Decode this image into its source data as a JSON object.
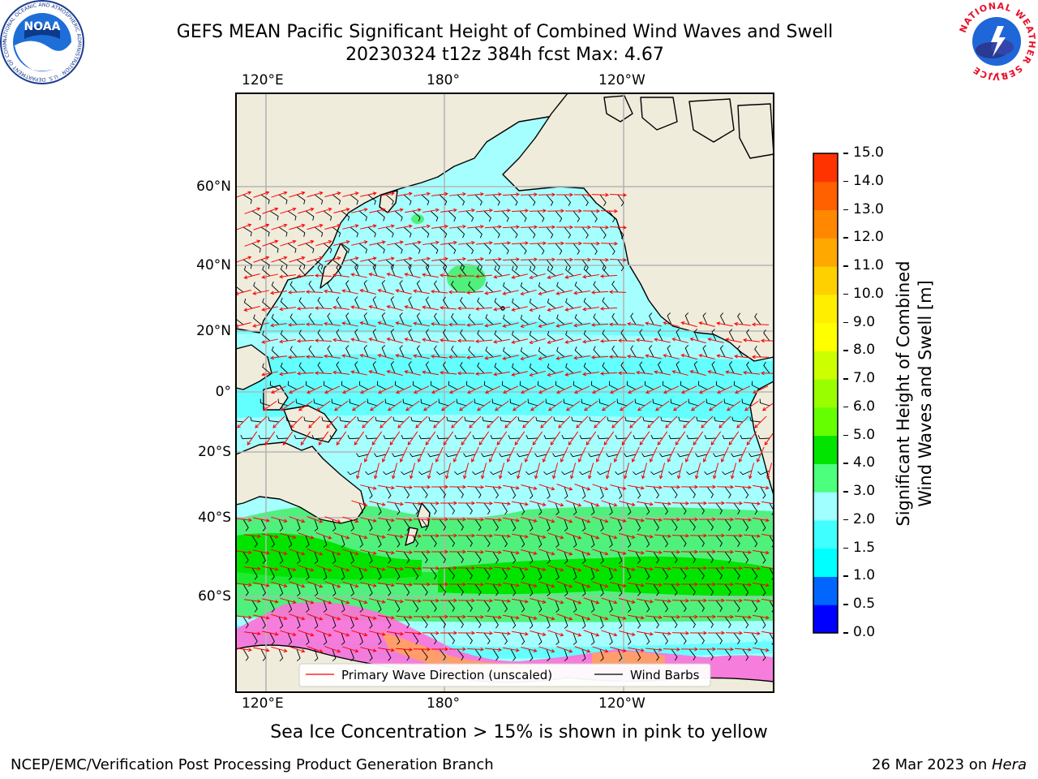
{
  "header": {
    "title_line1": "GEFS MEAN Pacific Significant Height of Combined Wind Waves and Swell",
    "title_line2": "20230324 t12z 384h fcst   Max: 4.67"
  },
  "logos": {
    "noaa_text": "NOAA",
    "noaa_ring_text": "NATIONAL OCEANIC AND ATMOSPHERIC ADMINISTRATION · U.S. DEPARTMENT OF COMMERCE",
    "nws_ring_text": "NATIONAL WEATHER SERVICE"
  },
  "map": {
    "lon_labels": [
      "120°E",
      "180°",
      "120°W"
    ],
    "lat_labels": [
      "60°N",
      "40°N",
      "20°N",
      "0°",
      "20°S",
      "40°S",
      "60°S"
    ],
    "legend": {
      "wave_dir": "Primary Wave Direction (unscaled)",
      "wind_barbs": "Wind Barbs"
    }
  },
  "colorbar": {
    "label_line1": "Significant Height of Combined",
    "label_line2": "Wind Waves and Swell [m]",
    "ticks": [
      "15.0",
      "14.0",
      "13.0",
      "12.0",
      "11.0",
      "10.0",
      "9.0",
      "8.0",
      "7.0",
      "6.0",
      "5.0",
      "4.0",
      "3.0",
      "2.0",
      "1.5",
      "1.0",
      "0.5",
      "0.0"
    ],
    "colors": [
      "#0000ff",
      "#0066ff",
      "#00ffff",
      "#40ffff",
      "#a0ffff",
      "#4cff7c",
      "#00e400",
      "#66ff00",
      "#99ff00",
      "#ccff00",
      "#ffff00",
      "#ffee00",
      "#ffd000",
      "#ffa800",
      "#ff8800",
      "#ff6000",
      "#ff3300",
      "#ff0000"
    ]
  },
  "note": "Sea Ice Concentration > 15% is shown in pink to yellow",
  "footer": {
    "left": "NCEP/EMC/Verification Post Processing Product Generation Branch",
    "right_date": "26 Mar 2023 on ",
    "right_host": "Hera"
  }
}
